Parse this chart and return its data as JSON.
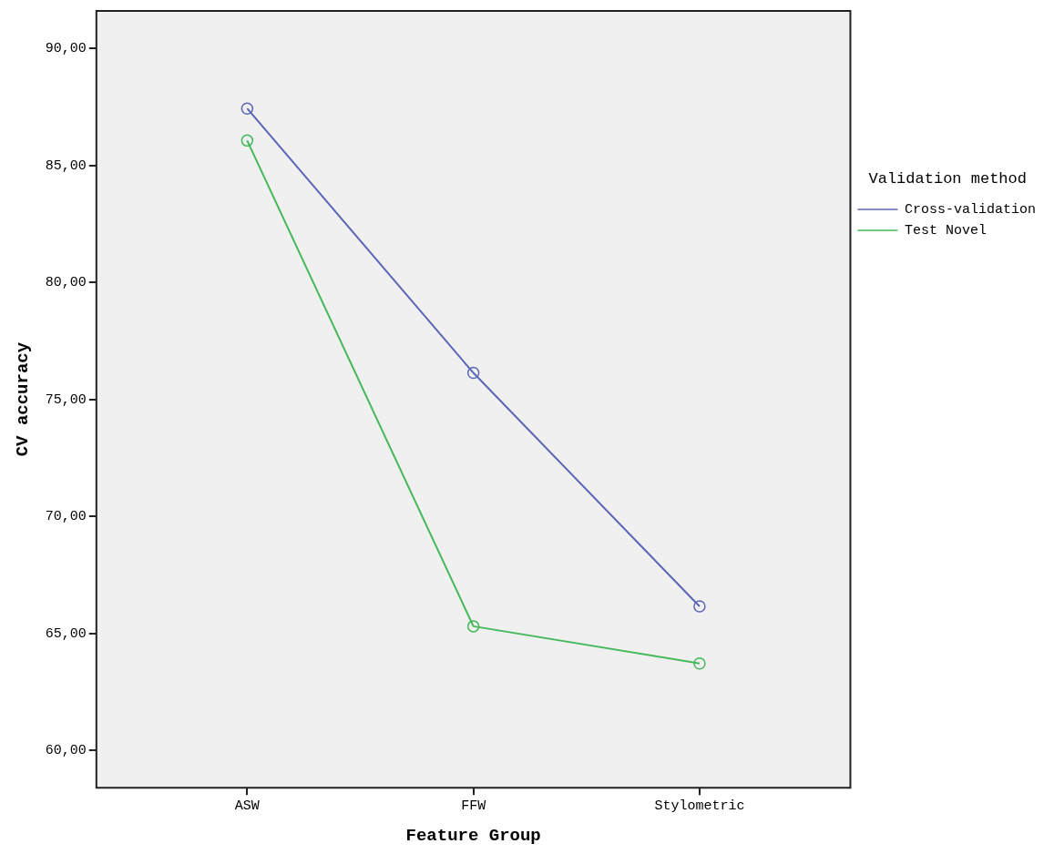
{
  "chart_data": {
    "type": "line",
    "xlabel": "Feature Group",
    "ylabel": "CV accuracy",
    "legend_title": "Validation method",
    "categories": [
      "ASW",
      "FFW",
      "Stylometric"
    ],
    "series": [
      {
        "name": "Cross-validation",
        "color": "#5a66b4",
        "values": [
          87.43,
          76.13,
          66.15
        ]
      },
      {
        "name": "Test Novel",
        "color": "#45b85a",
        "values": [
          86.06,
          65.3,
          63.71
        ]
      }
    ],
    "ylim": [
      58.4,
      91.6
    ],
    "yticks": [
      {
        "value": 60,
        "label": "60,00"
      },
      {
        "value": 65,
        "label": "65,00"
      },
      {
        "value": 70,
        "label": "70,00"
      },
      {
        "value": 75,
        "label": "75,00"
      },
      {
        "value": 80,
        "label": "80,00"
      },
      {
        "value": 85,
        "label": "85,00"
      },
      {
        "value": 90,
        "label": "90,00"
      }
    ],
    "grid": false,
    "legend": "right",
    "marker": "circle",
    "line_style": "solid"
  }
}
